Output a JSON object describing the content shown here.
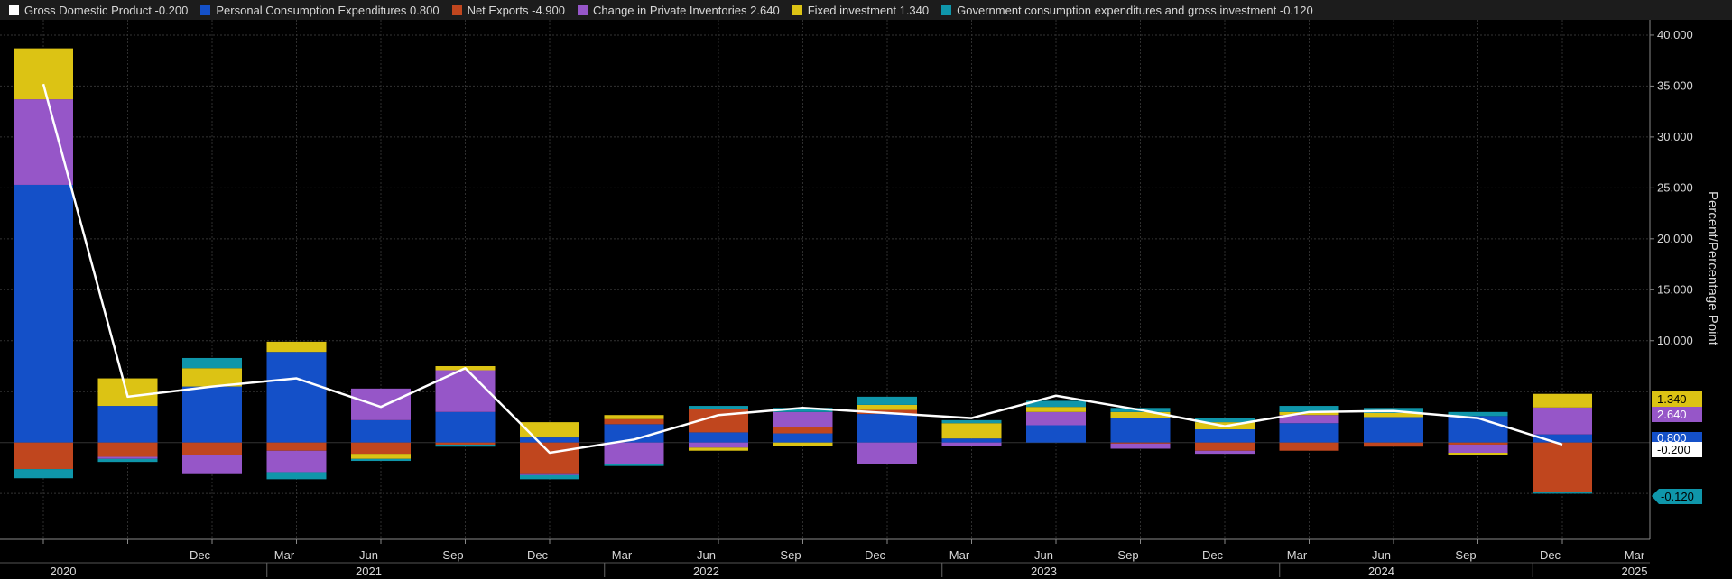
{
  "legend": [
    {
      "label": "Gross Domestic Product",
      "value": "-0.200",
      "color": "#ffffff"
    },
    {
      "label": "Personal Consumption Expenditures",
      "value": "0.800",
      "color": "#1450c8"
    },
    {
      "label": "Net Exports",
      "value": "-4.900",
      "color": "#c0461e"
    },
    {
      "label": "Change in Private Inventories",
      "value": "2.640",
      "color": "#9656c8"
    },
    {
      "label": "Fixed investment",
      "value": "1.340",
      "color": "#dcc314"
    },
    {
      "label": "Government consumption expenditures and gross investment",
      "value": "-0.120",
      "color": "#0f96aa"
    }
  ],
  "end_labels": {
    "fixed": "1.340",
    "inventories": "2.640",
    "pce": "0.800",
    "gdp": "-0.200",
    "gov": "-0.120"
  },
  "chart_data": {
    "type": "bar",
    "stacked": true,
    "ylabel": "Percent/Percentage Point",
    "ylim": [
      -9.5,
      41.5
    ],
    "yticks": [
      "40.000",
      "35.000",
      "30.000",
      "25.000",
      "20.000",
      "15.000",
      "10.000"
    ],
    "ytick_values": [
      40,
      35,
      30,
      25,
      20,
      15,
      10
    ],
    "x_month_labels": [
      "",
      "Dec",
      "Mar",
      "Jun",
      "Sep",
      "Dec",
      "Mar",
      "Jun",
      "Sep",
      "Dec",
      "Mar",
      "Jun",
      "Sep",
      "Dec",
      "Mar",
      "Jun",
      "Sep",
      "Dec",
      "Mar"
    ],
    "x_year_labels": [
      {
        "label": "2020",
        "index": 0
      },
      {
        "label": "2021",
        "index": 3
      },
      {
        "label": "2022",
        "index": 7
      },
      {
        "label": "2023",
        "index": 11
      },
      {
        "label": "2024",
        "index": 15
      },
      {
        "label": "2025",
        "index": 18
      }
    ],
    "series": [
      {
        "name": "Personal Consumption Expenditures",
        "color": "#1450c8",
        "values": [
          25.3,
          3.6,
          5.5,
          8.9,
          2.2,
          3.0,
          0.5,
          1.8,
          1.0,
          0.9,
          2.8,
          0.4,
          1.7,
          2.4,
          1.3,
          1.9,
          2.5,
          2.6,
          0.8
        ]
      },
      {
        "name": "Net Exports",
        "color": "#c0461e",
        "values": [
          -2.6,
          -1.4,
          -1.2,
          -0.8,
          -1.1,
          -0.2,
          -3.1,
          0.5,
          2.3,
          0.6,
          0.4,
          0.0,
          0.0,
          -0.1,
          -0.8,
          -0.8,
          -0.4,
          -0.2,
          -4.9
        ]
      },
      {
        "name": "Change in Private Inventories",
        "color": "#9656c8",
        "values": [
          8.4,
          -0.2,
          -1.9,
          -2.1,
          3.1,
          4.1,
          -0.1,
          -2.1,
          -0.5,
          1.5,
          -2.1,
          -0.3,
          1.3,
          -0.5,
          -0.3,
          0.8,
          0.0,
          -0.8,
          2.64
        ]
      },
      {
        "name": "Fixed investment",
        "color": "#dcc314",
        "values": [
          5.0,
          2.7,
          1.8,
          1.0,
          -0.5,
          0.4,
          1.5,
          0.4,
          -0.3,
          -0.3,
          0.5,
          1.5,
          0.5,
          0.6,
          0.7,
          0.3,
          0.4,
          -0.2,
          1.34
        ]
      },
      {
        "name": "Government consumption expenditures and gross investment",
        "color": "#0f96aa",
        "values": [
          -0.9,
          -0.3,
          1.0,
          -0.7,
          -0.2,
          -0.2,
          -0.4,
          -0.2,
          0.3,
          0.4,
          0.8,
          0.3,
          0.6,
          0.4,
          0.4,
          0.6,
          0.5,
          0.4,
          -0.12
        ]
      }
    ],
    "line": {
      "name": "Gross Domestic Product",
      "color": "#ffffff",
      "values": [
        35.2,
        4.5,
        5.5,
        6.3,
        3.5,
        7.3,
        -1.0,
        0.3,
        2.7,
        3.4,
        2.9,
        2.4,
        4.6,
        3.2,
        1.6,
        3.0,
        3.1,
        2.4,
        -0.2
      ]
    },
    "grid": true,
    "legend_position": "top"
  }
}
